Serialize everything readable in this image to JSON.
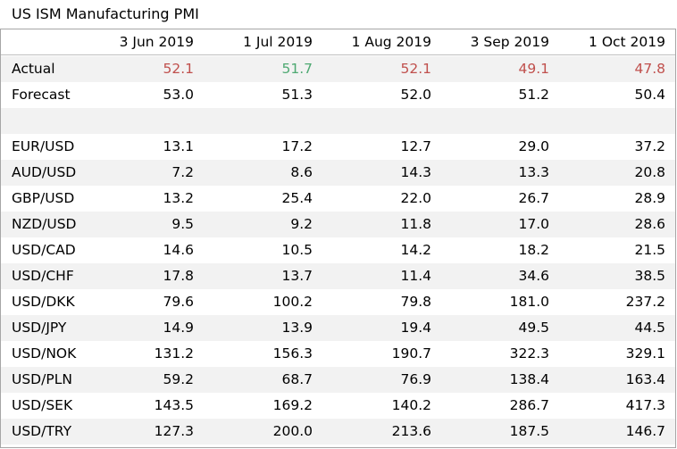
{
  "title": "US ISM Manufacturing PMI",
  "colors": {
    "negative": "#c0504d",
    "positive": "#4ea972",
    "row_shade": "#f2f2f2",
    "border": "#a6a6a6"
  },
  "columns": [
    "3 Jun 2019",
    "1 Jul 2019",
    "1 Aug 2019",
    "3 Sep 2019",
    "1 Oct 2019"
  ],
  "actual": {
    "label": "Actual",
    "values": [
      "52.1",
      "51.7",
      "52.1",
      "49.1",
      "47.8"
    ],
    "color_keys": [
      "negative",
      "positive",
      "negative",
      "negative",
      "negative"
    ]
  },
  "forecast": {
    "label": "Forecast",
    "values": [
      "53.0",
      "51.3",
      "52.0",
      "51.2",
      "50.4"
    ]
  },
  "pairs": [
    {
      "label": "EUR/USD",
      "values": [
        "13.1",
        "17.2",
        "12.7",
        "29.0",
        "37.2"
      ]
    },
    {
      "label": "AUD/USD",
      "values": [
        "7.2",
        "8.6",
        "14.3",
        "13.3",
        "20.8"
      ]
    },
    {
      "label": "GBP/USD",
      "values": [
        "13.2",
        "25.4",
        "22.0",
        "26.7",
        "28.9"
      ]
    },
    {
      "label": "NZD/USD",
      "values": [
        "9.5",
        "9.2",
        "11.8",
        "17.0",
        "28.6"
      ]
    },
    {
      "label": "USD/CAD",
      "values": [
        "14.6",
        "10.5",
        "14.2",
        "18.2",
        "21.5"
      ]
    },
    {
      "label": "USD/CHF",
      "values": [
        "17.8",
        "13.7",
        "11.4",
        "34.6",
        "38.5"
      ]
    },
    {
      "label": "USD/DKK",
      "values": [
        "79.6",
        "100.2",
        "79.8",
        "181.0",
        "237.2"
      ]
    },
    {
      "label": "USD/JPY",
      "values": [
        "14.9",
        "13.9",
        "19.4",
        "49.5",
        "44.5"
      ]
    },
    {
      "label": "USD/NOK",
      "values": [
        "131.2",
        "156.3",
        "190.7",
        "322.3",
        "329.1"
      ]
    },
    {
      "label": "USD/PLN",
      "values": [
        "59.2",
        "68.7",
        "76.9",
        "138.4",
        "163.4"
      ]
    },
    {
      "label": "USD/SEK",
      "values": [
        "143.5",
        "169.2",
        "140.2",
        "286.7",
        "417.3"
      ]
    },
    {
      "label": "USD/TRY",
      "values": [
        "127.3",
        "200.0",
        "213.6",
        "187.5",
        "146.7"
      ]
    }
  ]
}
